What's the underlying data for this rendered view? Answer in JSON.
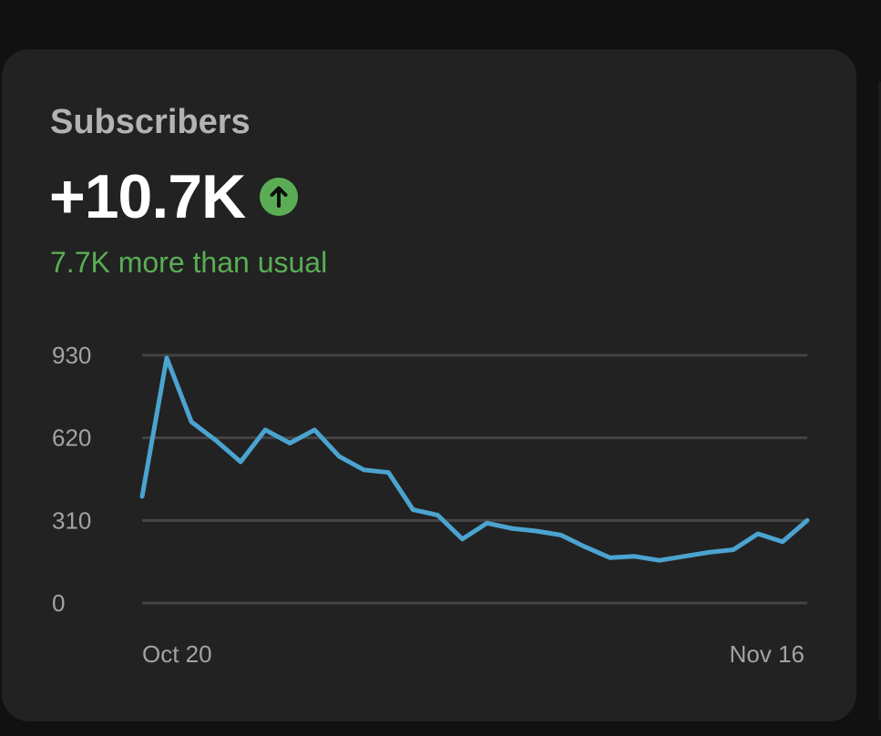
{
  "card": {
    "title": "Subscribers",
    "metric": "+10.7K",
    "trend_icon": "arrow-up-circle-icon",
    "comparison": "7.7K more than usual"
  },
  "colors": {
    "background": "#111111",
    "card": "#222222",
    "positive": "#5aad54",
    "series": "#4ba3d0",
    "grid": "#444444"
  },
  "chart_data": {
    "type": "line",
    "title": "",
    "xlabel": "",
    "ylabel": "",
    "x_range": [
      "Oct 20",
      "Nov 16"
    ],
    "x_tick_labels": [
      "Oct 20",
      "Nov 16"
    ],
    "y_ticks": [
      0,
      310,
      620,
      930
    ],
    "y_tick_labels": [
      "0",
      "310",
      "620",
      "930"
    ],
    "ylim": [
      0,
      930
    ],
    "grid": true,
    "legend": "none",
    "series": [
      {
        "values": [
          400,
          920,
          680,
          610,
          530,
          650,
          600,
          650,
          550,
          500,
          490,
          350,
          330,
          240,
          300,
          280,
          270,
          255,
          210,
          170,
          175,
          160,
          175,
          190,
          200,
          260,
          230,
          310
        ]
      }
    ]
  }
}
